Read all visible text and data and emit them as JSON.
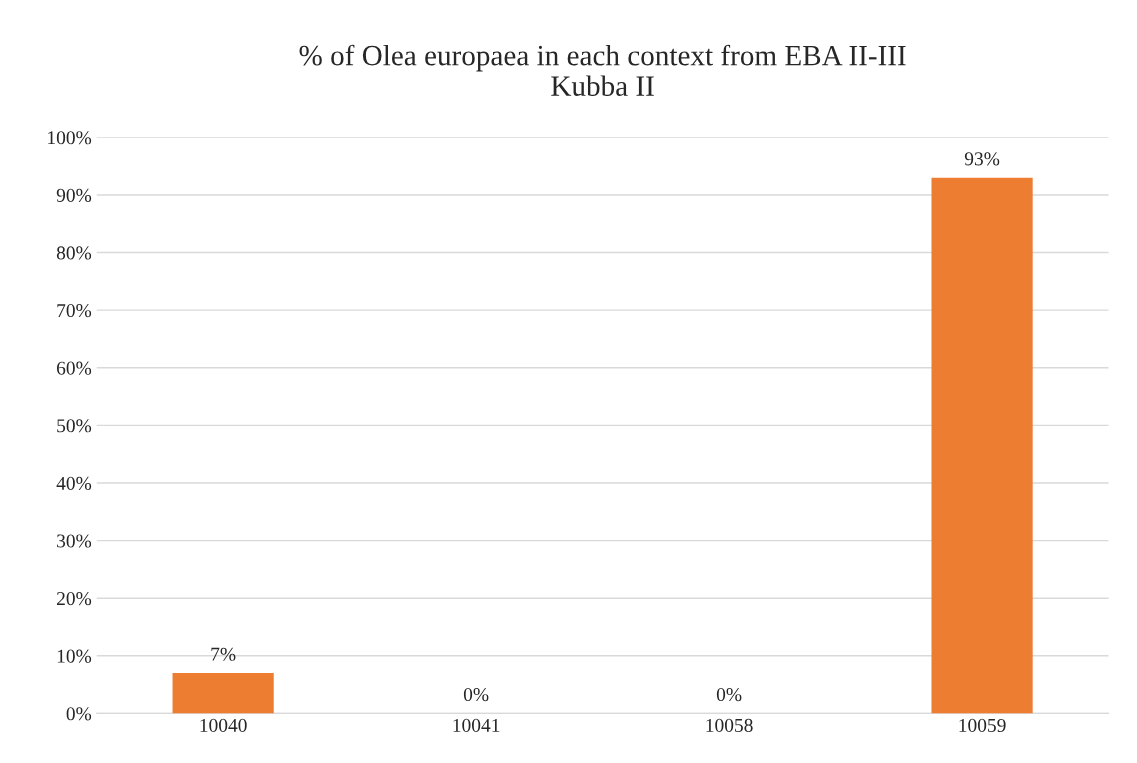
{
  "chart_data": {
    "type": "bar",
    "title": "% of Olea europaea in each context from EBA II-III\nKubba II",
    "categories": [
      "10040",
      "10041",
      "10058",
      "10059"
    ],
    "values": [
      7,
      0,
      0,
      93
    ],
    "value_labels": [
      "7%",
      "0%",
      "0%",
      "93%"
    ],
    "color": "#ed7d31",
    "ylim": [
      0,
      100
    ],
    "yticks": [
      {
        "value": 0,
        "label": "0%"
      },
      {
        "value": 10,
        "label": "10%"
      },
      {
        "value": 20,
        "label": "20%"
      },
      {
        "value": 30,
        "label": "30%"
      },
      {
        "value": 40,
        "label": "40%"
      },
      {
        "value": 50,
        "label": "50%"
      },
      {
        "value": 60,
        "label": "60%"
      },
      {
        "value": 70,
        "label": "70%"
      },
      {
        "value": 80,
        "label": "80%"
      },
      {
        "value": 90,
        "label": "90%"
      },
      {
        "value": 100,
        "label": "100%"
      }
    ],
    "grid": "y"
  }
}
